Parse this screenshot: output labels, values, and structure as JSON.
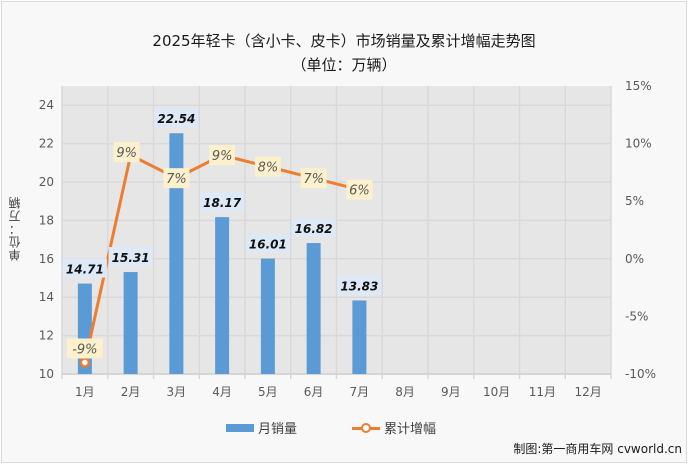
{
  "header": {
    "title_line1": "2025年轻卡（含小卡、皮卡）市场销量及累计增幅走势图",
    "title_line2": "（单位：万辆）"
  },
  "axes": {
    "left_label": "单位：万辆",
    "left_ticks": [
      "10",
      "12",
      "14",
      "16",
      "18",
      "20",
      "22",
      "24"
    ],
    "right_ticks": [
      "-10%",
      "-5%",
      "0%",
      "5%",
      "10%",
      "15%"
    ],
    "x_ticks": [
      "1月",
      "2月",
      "3月",
      "4月",
      "5月",
      "6月",
      "7月",
      "8月",
      "9月",
      "10月",
      "11月",
      "12月"
    ]
  },
  "legend": {
    "bar_label": "月销量",
    "line_label": "累计增幅"
  },
  "credit": "制图:第一商用车网 cvworld.cn",
  "colors": {
    "bar": "#5b9bd5",
    "line": "#ed7d31",
    "plot_bg": "#e6e6e6",
    "grid": "#d9d9d9",
    "bar_label_bg": "#dde9f6",
    "line_label_bg": "#fdf0cc"
  },
  "chart_data": {
    "type": "bar+line",
    "title": "2025年轻卡（含小卡、皮卡）市场销量及累计增幅走势图（单位：万辆）",
    "categories": [
      "1月",
      "2月",
      "3月",
      "4月",
      "5月",
      "6月",
      "7月",
      "8月",
      "9月",
      "10月",
      "11月",
      "12月"
    ],
    "series": [
      {
        "name": "月销量",
        "type": "bar",
        "axis": "left",
        "values": [
          14.71,
          15.31,
          22.54,
          18.17,
          16.01,
          16.82,
          13.83,
          null,
          null,
          null,
          null,
          null
        ],
        "labels": [
          "14.71",
          "15.31",
          "22.54",
          "18.17",
          "16.01",
          "16.82",
          "13.83"
        ]
      },
      {
        "name": "累计增幅",
        "type": "line",
        "axis": "right",
        "values": [
          -9,
          9,
          7,
          9,
          8,
          7,
          6,
          null,
          null,
          null,
          null,
          null
        ],
        "labels": [
          "-9%",
          "9%",
          "7%",
          "9%",
          "8%",
          "7%",
          "6%"
        ]
      }
    ],
    "ylabel": "单位：万辆",
    "ylim": [
      10,
      25
    ],
    "y2lim": [
      -10,
      15
    ],
    "y2label": "%",
    "grid": true,
    "legend_position": "bottom"
  }
}
